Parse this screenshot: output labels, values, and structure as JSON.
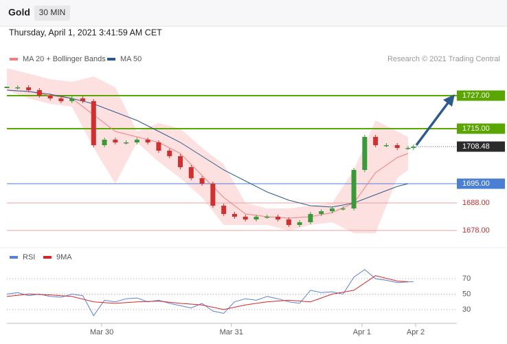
{
  "header": {
    "title": "Gold",
    "timeframe": "30 MIN",
    "timestamp": "Thursday, April 1, 2021 3:41:59 AM CET"
  },
  "chart_data": [
    {
      "type": "candlestick",
      "source": "Research © 2021 Trading Central",
      "up_color": "#3a9a3a",
      "down_color": "#d03030",
      "x": [
        0,
        2,
        4,
        6,
        8,
        10,
        12,
        14,
        16,
        18,
        20,
        22,
        24,
        26,
        28,
        30,
        32,
        34,
        36,
        38,
        40,
        42,
        44,
        46,
        48,
        50,
        52,
        54,
        56,
        58,
        60,
        62,
        64,
        66,
        68,
        70,
        72,
        74,
        75
      ],
      "values": [
        1730,
        1730,
        1729,
        1727,
        1726,
        1725,
        1726,
        1725,
        1709,
        1711,
        1710,
        1710,
        1711,
        1710,
        1707,
        1705,
        1701,
        1697,
        1695,
        1687,
        1684,
        1683,
        1682,
        1683,
        1683,
        1682,
        1680,
        1681,
        1684,
        1685,
        1686,
        1686,
        1700,
        1712,
        1709,
        1709,
        1708,
        1708,
        1708.48
      ],
      "last_label": "1708.48",
      "series": [
        {
          "name": "MA 20 + Bollinger Bands",
          "color": "#f08080",
          "band_color": "#fde0e0",
          "x": [
            0,
            4,
            8,
            12,
            16,
            20,
            24,
            28,
            32,
            36,
            40,
            44,
            48,
            52,
            56,
            60,
            64,
            68,
            72,
            74
          ],
          "values": [
            1729,
            1728.5,
            1727,
            1726,
            1720,
            1714,
            1712,
            1710,
            1706,
            1698,
            1690,
            1684,
            1683,
            1682.5,
            1683,
            1684.5,
            1688,
            1699,
            1704.5,
            1706
          ],
          "upper": [
            1737,
            1735,
            1733,
            1732,
            1734,
            1730,
            1714,
            1717,
            1715,
            1708,
            1702,
            1688,
            1686,
            1686,
            1687,
            1688,
            1700,
            1718,
            1714,
            1712
          ],
          "lower": [
            1729,
            1726,
            1724,
            1723,
            1708,
            1695,
            1710,
            1703,
            1697,
            1690,
            1680,
            1680,
            1680,
            1678,
            1680,
            1681,
            1677,
            1677,
            1697,
            1700
          ]
        },
        {
          "name": "MA 50",
          "color": "#2c5a8c",
          "x": [
            0,
            4,
            8,
            12,
            16,
            20,
            24,
            28,
            32,
            36,
            40,
            44,
            48,
            52,
            56,
            60,
            64,
            68,
            72,
            74
          ],
          "values": [
            1729,
            1728.5,
            1727.5,
            1726,
            1724,
            1721,
            1718,
            1714,
            1710,
            1705,
            1700,
            1696,
            1692,
            1689,
            1687,
            1686.5,
            1688,
            1691,
            1694,
            1695
          ]
        }
      ],
      "levels": [
        {
          "value": 1727,
          "label": "1727.00",
          "color": "#5aa500",
          "style": "box"
        },
        {
          "value": 1715,
          "label": "1715.00",
          "color": "#5aa500",
          "style": "box"
        },
        {
          "value": 1695,
          "label": "1695.00",
          "color": "#4a7fd4",
          "style": "box"
        },
        {
          "value": 1688,
          "label": "1688.00",
          "color": "#e8a0a0",
          "style": "text"
        },
        {
          "value": 1678,
          "label": "1678.00",
          "color": "#e8a0a0",
          "style": "text"
        }
      ],
      "xlim": [
        0,
        83
      ],
      "ylim": [
        1673,
        1738
      ]
    },
    {
      "type": "line",
      "series": [
        {
          "name": "RSI",
          "color": "#5b7fd6",
          "x": [
            0,
            2,
            4,
            6,
            8,
            10,
            12,
            14,
            16,
            18,
            20,
            22,
            24,
            26,
            28,
            30,
            32,
            34,
            36,
            38,
            40,
            42,
            44,
            46,
            48,
            50,
            52,
            54,
            56,
            58,
            60,
            62,
            64,
            66,
            68,
            70,
            72,
            74,
            75
          ],
          "values": [
            50,
            52,
            48,
            50,
            47,
            46,
            50,
            48,
            22,
            42,
            40,
            44,
            45,
            40,
            42,
            38,
            35,
            32,
            38,
            28,
            25,
            40,
            44,
            42,
            47,
            44,
            40,
            38,
            55,
            52,
            53,
            50,
            72,
            82,
            70,
            68,
            65,
            66,
            66
          ]
        },
        {
          "name": "9MA",
          "color": "#d62728",
          "x": [
            0,
            4,
            8,
            12,
            16,
            20,
            24,
            28,
            32,
            36,
            40,
            44,
            48,
            52,
            56,
            60,
            64,
            68,
            72,
            74
          ],
          "values": [
            47,
            50,
            49,
            47,
            40,
            38,
            40,
            41,
            38,
            36,
            30,
            36,
            40,
            42,
            40,
            50,
            55,
            74,
            67,
            66
          ]
        }
      ],
      "xlim": [
        0,
        83
      ],
      "ylim": [
        12,
        88
      ],
      "yticks": [
        30,
        50,
        70
      ],
      "xticks": [
        {
          "value": 17.5,
          "label": "Mar 30"
        },
        {
          "value": 41.4,
          "label": "Mar 31"
        },
        {
          "value": 65.5,
          "label": "Apr 1"
        },
        {
          "value": 75.4,
          "label": "Apr 2"
        }
      ]
    }
  ]
}
